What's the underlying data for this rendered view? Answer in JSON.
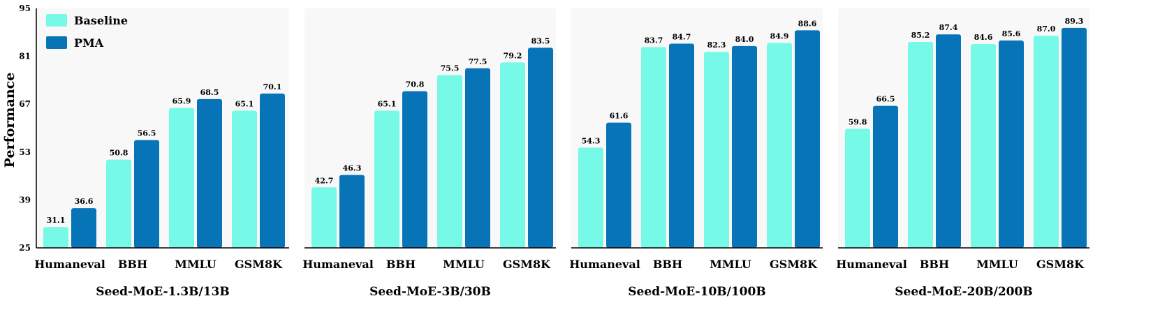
{
  "y_axis": {
    "label": "Performance",
    "ticks": [
      "95",
      "81",
      "67",
      "53",
      "39",
      "25"
    ]
  },
  "legend": [
    {
      "name": "Baseline",
      "color": "#76fae7"
    },
    {
      "name": "PMA",
      "color": "#0774b8"
    }
  ],
  "colors": {
    "panel_bg": "#f8f8f8",
    "axis": "#000000"
  },
  "chart_data": [
    {
      "type": "bar",
      "title": "Seed-MoE-1.3B/13B",
      "categories": [
        "Humaneval",
        "BBH",
        "MMLU",
        "GSM8K"
      ],
      "series": [
        {
          "name": "Baseline",
          "values": [
            31.1,
            50.8,
            65.9,
            65.1
          ],
          "labels": [
            "31.1",
            "50.8",
            "65.9",
            "65.1"
          ]
        },
        {
          "name": "PMA",
          "values": [
            36.6,
            56.5,
            68.5,
            70.1
          ],
          "labels": [
            "36.6",
            "56.5",
            "68.5",
            "70.1"
          ]
        }
      ],
      "ylabel": "Performance",
      "ylim": [
        25,
        95
      ]
    },
    {
      "type": "bar",
      "title": "Seed-MoE-3B/30B",
      "categories": [
        "Humaneval",
        "BBH",
        "MMLU",
        "GSM8K"
      ],
      "series": [
        {
          "name": "Baseline",
          "values": [
            42.7,
            65.1,
            75.5,
            79.2
          ],
          "labels": [
            "42.7",
            "65.1",
            "75.5",
            "79.2"
          ]
        },
        {
          "name": "PMA",
          "values": [
            46.3,
            70.8,
            77.5,
            83.5
          ],
          "labels": [
            "46.3",
            "70.8",
            "77.5",
            "83.5"
          ]
        }
      ],
      "ylim": [
        25,
        95
      ]
    },
    {
      "type": "bar",
      "title": "Seed-MoE-10B/100B",
      "categories": [
        "Humaneval",
        "BBH",
        "MMLU",
        "GSM8K"
      ],
      "series": [
        {
          "name": "Baseline",
          "values": [
            54.3,
            83.7,
            82.3,
            84.9
          ],
          "labels": [
            "54.3",
            "83.7",
            "82.3",
            "84.9"
          ]
        },
        {
          "name": "PMA",
          "values": [
            61.6,
            84.7,
            84.0,
            88.6
          ],
          "labels": [
            "61.6",
            "84.7",
            "84.0",
            "88.6"
          ]
        }
      ],
      "ylim": [
        25,
        95
      ]
    },
    {
      "type": "bar",
      "title": "Seed-MoE-20B/200B",
      "categories": [
        "Humaneval",
        "BBH",
        "MMLU",
        "GSM8K"
      ],
      "series": [
        {
          "name": "Baseline",
          "values": [
            59.8,
            85.2,
            84.6,
            87.0
          ],
          "labels": [
            "59.8",
            "85.2",
            "84.6",
            "87.0"
          ]
        },
        {
          "name": "PMA",
          "values": [
            66.5,
            87.4,
            85.6,
            89.3
          ],
          "labels": [
            "66.5",
            "87.4",
            "85.6",
            "89.3"
          ]
        }
      ],
      "ylim": [
        25,
        95
      ]
    }
  ]
}
